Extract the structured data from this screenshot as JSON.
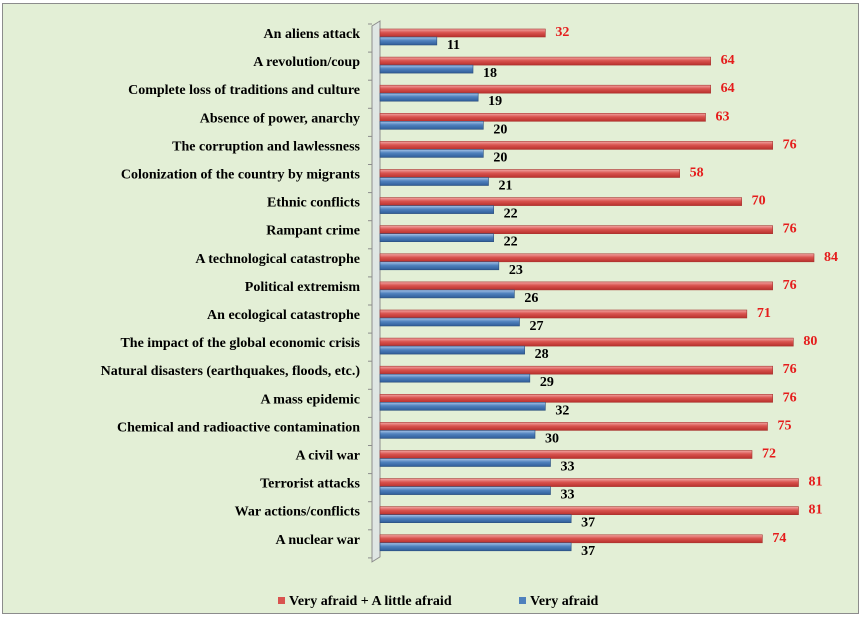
{
  "chart_data": {
    "type": "bar",
    "orientation": "horizontal",
    "categories": [
      "An aliens attack",
      "A revolution/coup",
      "Complete loss of traditions and culture",
      "Absence of power, anarchy",
      "The corruption and lawlessness",
      "Colonization of the country by migrants",
      "Ethnic conflicts",
      "Rampant crime",
      "A technological catastrophe",
      "Political extremism",
      "An ecological catastrophe",
      "The impact of the global economic crisis",
      "Natural disasters (earthquakes, floods, etc.)",
      "A mass epidemic",
      "Chemical and radioactive contamination",
      "A civil war",
      "Terrorist attacks",
      "War actions/conflicts",
      "A nuclear war"
    ],
    "series": [
      {
        "name": "Very afraid + A little afraid",
        "color": "#d9534f",
        "values": [
          32,
          64,
          64,
          63,
          76,
          58,
          70,
          76,
          84,
          76,
          71,
          80,
          76,
          76,
          75,
          72,
          81,
          81,
          74
        ]
      },
      {
        "name": "Very afraid",
        "color": "#4f81bd",
        "values": [
          11,
          18,
          19,
          20,
          20,
          21,
          22,
          22,
          23,
          26,
          27,
          28,
          29,
          32,
          30,
          33,
          33,
          37,
          37
        ]
      }
    ],
    "xlim": [
      0,
      84
    ],
    "title": "",
    "xlabel": "",
    "ylabel": "",
    "legend": "bottom",
    "grid": false
  }
}
